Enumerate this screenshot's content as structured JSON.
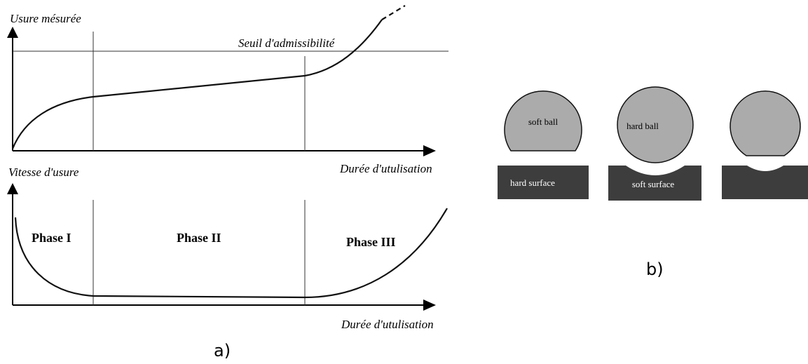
{
  "panel_a": {
    "top": {
      "y_label": "Usure mésurée",
      "threshold_label": "Seuil d'admissibilité",
      "x_label": "Durée d'utulisation"
    },
    "bottom": {
      "y_label": "Vitesse d'usure",
      "phases": [
        "Phase I",
        "Phase II",
        "Phase III"
      ],
      "x_label": "Durée d'utulisation"
    },
    "caption": "a)"
  },
  "panel_b": {
    "items": [
      {
        "ball": "soft ball",
        "surface": "hard surface"
      },
      {
        "ball": "hard ball",
        "surface": "soft surface"
      }
    ],
    "caption": "b)"
  }
}
